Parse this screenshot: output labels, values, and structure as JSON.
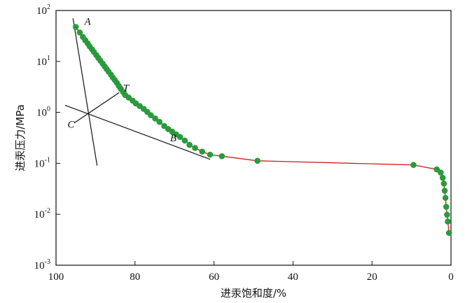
{
  "chart_data": {
    "type": "scatter",
    "xlabel": "进汞饱和度/%",
    "ylabel": "进汞压力/MPa",
    "xlim": [
      100,
      0
    ],
    "ylim": [
      0.001,
      100
    ],
    "y_scale": "log",
    "x_ticks": [
      "100",
      "80",
      "60",
      "40",
      "20",
      "0"
    ],
    "y_ticks": [
      {
        "base": "10",
        "exp": "2"
      },
      {
        "base": "10",
        "exp": "1"
      },
      {
        "base": "10",
        "exp": "0"
      },
      {
        "base": "10",
        "exp": "-1"
      },
      {
        "base": "10",
        "exp": "-2"
      },
      {
        "base": "10",
        "exp": "-3"
      }
    ],
    "series": [
      {
        "color": "#2a9a3c",
        "line_color": "#cc1f1f",
        "points": [
          [
            95.0,
            47.5
          ],
          [
            94.0,
            37.0
          ],
          [
            93.2,
            30.2
          ],
          [
            92.6,
            26.0
          ],
          [
            92.0,
            22.7
          ],
          [
            91.5,
            19.8
          ],
          [
            90.9,
            17.3
          ],
          [
            90.4,
            15.3
          ],
          [
            89.8,
            13.3
          ],
          [
            89.3,
            11.7
          ],
          [
            88.8,
            10.4
          ],
          [
            88.2,
            9.1
          ],
          [
            87.7,
            8.0
          ],
          [
            87.2,
            7.1
          ],
          [
            86.7,
            6.3
          ],
          [
            86.1,
            5.5
          ],
          [
            85.6,
            4.8
          ],
          [
            85.1,
            4.3
          ],
          [
            84.6,
            3.8
          ],
          [
            84.1,
            3.3
          ],
          [
            83.6,
            2.9
          ],
          [
            83.0,
            2.5
          ],
          [
            82.5,
            2.2
          ],
          [
            81.6,
            1.95
          ],
          [
            80.6,
            1.7
          ],
          [
            79.8,
            1.5
          ],
          [
            78.8,
            1.33
          ],
          [
            77.8,
            1.17
          ],
          [
            76.9,
            1.02
          ],
          [
            76.0,
            0.88
          ],
          [
            74.9,
            0.76
          ],
          [
            73.8,
            0.65
          ],
          [
            72.6,
            0.54
          ],
          [
            71.6,
            0.47
          ],
          [
            70.6,
            0.42
          ],
          [
            69.6,
            0.37
          ],
          [
            68.6,
            0.33
          ],
          [
            67.4,
            0.28
          ],
          [
            66.2,
            0.23
          ],
          [
            64.8,
            0.2
          ],
          [
            63.0,
            0.17
          ],
          [
            61.0,
            0.148
          ],
          [
            58.0,
            0.138
          ],
          [
            49.0,
            0.112
          ],
          [
            9.5,
            0.093
          ],
          [
            3.6,
            0.076
          ],
          [
            2.6,
            0.066
          ],
          [
            2.1,
            0.052
          ],
          [
            1.8,
            0.04
          ],
          [
            1.6,
            0.029
          ],
          [
            1.4,
            0.021
          ],
          [
            1.2,
            0.014
          ],
          [
            1.0,
            0.0098
          ],
          [
            0.8,
            0.0072
          ],
          [
            0.5,
            0.0043
          ]
        ]
      }
    ],
    "annotations": [
      {
        "text": "A",
        "x": 92.0,
        "y": 52.0
      },
      {
        "text": "T",
        "x": 82.3,
        "y": 2.6
      },
      {
        "text": "C",
        "x": 96.2,
        "y": 0.5
      },
      {
        "text": "B",
        "x": 70.3,
        "y": 0.27
      }
    ],
    "reference_lines": [
      {
        "from": [
          95.7,
          70
        ],
        "to": [
          89.6,
          0.09
        ]
      },
      {
        "from": [
          97.7,
          1.38
        ],
        "to": [
          61.0,
          0.12
        ]
      },
      {
        "from": [
          95.4,
          0.62
        ],
        "to": [
          84.0,
          2.45
        ]
      }
    ]
  }
}
